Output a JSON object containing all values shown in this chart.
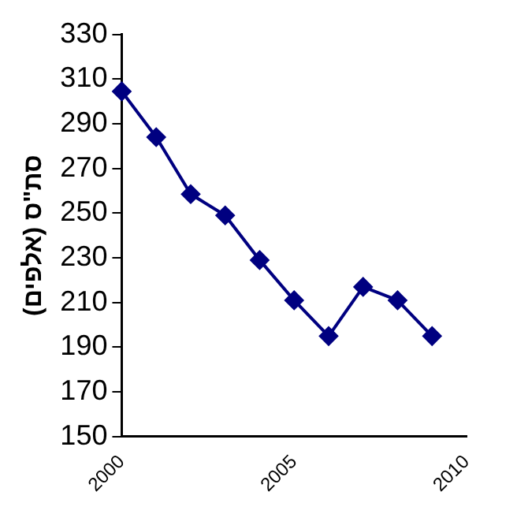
{
  "chart_data": {
    "type": "line",
    "ylabel": "סת\"ס (אלפים)",
    "categories": [
      "2000",
      null,
      null,
      null,
      null,
      "2005",
      null,
      null,
      null,
      null,
      "2010"
    ],
    "series": [
      {
        "color": "#000080",
        "values": [
          304.5,
          284,
          258.5,
          249,
          229,
          211,
          195,
          217,
          211,
          195,
          null
        ]
      }
    ],
    "ylim": [
      150,
      330
    ],
    "yticks": [
      150,
      170,
      190,
      210,
      230,
      250,
      270,
      290,
      310,
      330
    ],
    "grid": false,
    "legend": false,
    "marker": "diamond",
    "line_style": "solid"
  }
}
